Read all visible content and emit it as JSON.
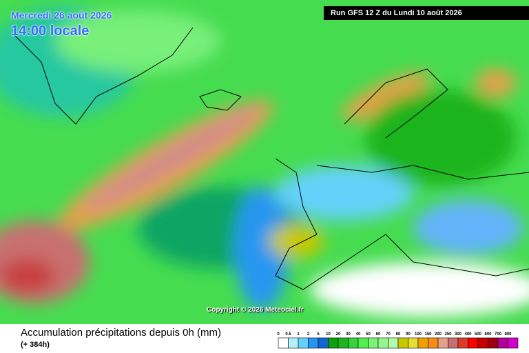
{
  "header": {
    "date": "Mercredi 26 août 2026",
    "time": "14:00 locale",
    "run": "Run GFS 12 Z du Lundi 10 août 2026"
  },
  "copyright": "Copyright © 2026 Meteociel.fr",
  "footer": {
    "title": "Accumulation précipitations depuis 0h (mm)",
    "subtitle": "(+ 384h)"
  },
  "legend": {
    "labels": [
      0,
      0.5,
      1,
      2,
      5,
      10,
      20,
      30,
      40,
      50,
      60,
      70,
      80,
      90,
      100,
      150,
      200,
      250,
      300,
      400,
      500,
      600,
      700,
      800
    ],
    "colors": [
      "#ffffff",
      "#b4f0fa",
      "#64d2fa",
      "#2896f0",
      "#1464d2",
      "#0fa00f",
      "#1eb41e",
      "#37d23c",
      "#50f050",
      "#78f573",
      "#96f58c",
      "#b4faaa",
      "#c8c800",
      "#e6dc32",
      "#f0a000",
      "#fa8c14",
      "#e6a08c",
      "#c86e6e",
      "#dc3c28",
      "#fa0000",
      "#c80000",
      "#a00014",
      "#b4009a",
      "#d200c8"
    ]
  }
}
